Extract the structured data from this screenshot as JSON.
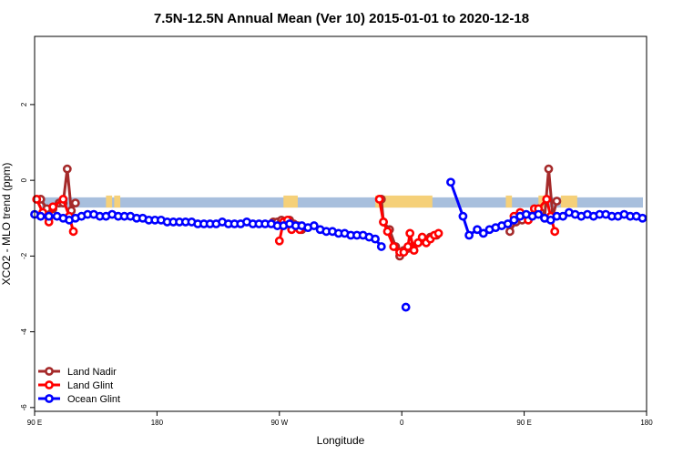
{
  "chart_data": {
    "type": "line",
    "title": "7.5N-12.5N Annual Mean (Ver 10)   2015-01-01 to 2020-12-18",
    "xlabel": "Longitude",
    "ylabel": "XCO2 - MLO trend (ppm)",
    "xlim": [
      -30,
      270
    ],
    "ylim": [
      -6.1,
      3.8
    ],
    "x_ticks": [
      {
        "value": -30,
        "label": "90 E"
      },
      {
        "value": 30,
        "label": "180"
      },
      {
        "value": 90,
        "label": "90 W"
      },
      {
        "value": 150,
        "label": "0"
      },
      {
        "value": 210,
        "label": "90 E"
      },
      {
        "value": 270,
        "label": "180"
      }
    ],
    "y_ticks": [
      {
        "value": 2,
        "label": "2"
      },
      {
        "value": 0,
        "label": "0"
      },
      {
        "value": -2,
        "label": "-2"
      },
      {
        "value": -4,
        "label": "-4"
      },
      {
        "value": -6,
        "label": "-6"
      }
    ],
    "legend_position": "bottom-left",
    "land_band": {
      "y_top": -0.45,
      "y_bottom": -0.72,
      "color": "#a8bfdd",
      "land_color": "#f5d079",
      "land_segments": [
        [
          5,
          8
        ],
        [
          9,
          12
        ],
        [
          92,
          99
        ],
        [
          137,
          165
        ],
        [
          201,
          204
        ],
        [
          217,
          221
        ],
        [
          228,
          236
        ]
      ]
    },
    "series": [
      {
        "name": "Land Nadir",
        "color": "#a52a2a",
        "segments": [
          [
            [
              -27,
              -0.5
            ],
            [
              -24,
              -0.75
            ],
            [
              -23,
              -1.0
            ],
            [
              -21,
              -0.75
            ],
            [
              -18,
              -0.6
            ],
            [
              -16,
              -0.6
            ],
            [
              -14,
              0.3
            ],
            [
              -12,
              -0.8
            ],
            [
              -10,
              -0.6
            ]
          ],
          [
            [
              87,
              -1.1
            ],
            [
              89,
              -1.1
            ],
            [
              91,
              -1.05
            ],
            [
              93,
              -1.1
            ],
            [
              95,
              -1.05
            ],
            [
              97,
              -1.15
            ],
            [
              99,
              -1.2
            ],
            [
              101,
              -1.3
            ]
          ],
          [
            [
              140,
              -0.5
            ],
            [
              141,
              -1.1
            ],
            [
              144,
              -1.3
            ],
            [
              147,
              -1.75
            ],
            [
              149,
              -2.0
            ],
            [
              151,
              -1.85
            ],
            [
              153,
              -1.8
            ],
            [
              155,
              -1.75
            ],
            [
              158,
              -1.65
            ],
            [
              161,
              -1.6
            ],
            [
              164,
              -1.5
            ],
            [
              167,
              -1.45
            ]
          ],
          [
            [
              203,
              -1.35
            ],
            [
              206,
              -1.1
            ],
            [
              209,
              -1.05
            ],
            [
              213,
              -0.95
            ],
            [
              216,
              -0.85
            ],
            [
              218,
              -0.85
            ],
            [
              220,
              -1.0
            ],
            [
              222,
              0.3
            ],
            [
              224,
              -0.95
            ],
            [
              226,
              -0.55
            ]
          ]
        ]
      },
      {
        "name": "Land Glint",
        "color": "#ff0000",
        "segments": [
          [
            [
              -29,
              -0.5
            ],
            [
              -26,
              -0.85
            ],
            [
              -23,
              -1.1
            ],
            [
              -21,
              -0.7
            ],
            [
              -16,
              -0.5
            ],
            [
              -13,
              -0.95
            ],
            [
              -11,
              -1.35
            ]
          ],
          [
            [
              90,
              -1.6
            ],
            [
              92,
              -1.1
            ],
            [
              94,
              -1.05
            ],
            [
              96,
              -1.3
            ],
            [
              98,
              -1.2
            ],
            [
              100,
              -1.3
            ]
          ],
          [
            [
              139,
              -0.5
            ],
            [
              141,
              -1.1
            ],
            [
              143,
              -1.35
            ],
            [
              146,
              -1.75
            ],
            [
              149,
              -1.9
            ],
            [
              151,
              -1.9
            ],
            [
              153,
              -1.75
            ],
            [
              154,
              -1.4
            ],
            [
              156,
              -1.85
            ],
            [
              158,
              -1.65
            ],
            [
              160,
              -1.5
            ],
            [
              162,
              -1.65
            ],
            [
              164,
              -1.55
            ],
            [
              166,
              -1.45
            ],
            [
              168,
              -1.4
            ]
          ],
          [
            [
              205,
              -0.95
            ],
            [
              208,
              -0.85
            ],
            [
              212,
              -1.05
            ],
            [
              215,
              -0.75
            ],
            [
              217,
              -0.75
            ],
            [
              221,
              -0.5
            ],
            [
              223,
              -0.95
            ],
            [
              225,
              -1.35
            ]
          ]
        ]
      },
      {
        "name": "Ocean Glint",
        "color": "#0000ff",
        "segments": [
          [
            [
              -30,
              -0.9
            ],
            [
              -27,
              -0.95
            ],
            [
              -23,
              -0.95
            ],
            [
              -19,
              -0.95
            ],
            [
              -16,
              -1.0
            ],
            [
              -13,
              -1.05
            ],
            [
              -10,
              -1.0
            ],
            [
              -7,
              -0.95
            ],
            [
              -4,
              -0.9
            ],
            [
              -1,
              -0.9
            ],
            [
              2,
              -0.95
            ],
            [
              5,
              -0.95
            ],
            [
              8,
              -0.9
            ],
            [
              11,
              -0.95
            ],
            [
              14,
              -0.95
            ],
            [
              17,
              -0.95
            ],
            [
              20,
              -1.0
            ],
            [
              23,
              -1.0
            ],
            [
              26,
              -1.05
            ],
            [
              29,
              -1.05
            ],
            [
              32,
              -1.05
            ],
            [
              35,
              -1.1
            ],
            [
              38,
              -1.1
            ],
            [
              41,
              -1.1
            ],
            [
              44,
              -1.1
            ],
            [
              47,
              -1.1
            ],
            [
              50,
              -1.15
            ],
            [
              53,
              -1.15
            ],
            [
              56,
              -1.15
            ],
            [
              59,
              -1.15
            ],
            [
              62,
              -1.1
            ],
            [
              65,
              -1.15
            ],
            [
              68,
              -1.15
            ],
            [
              71,
              -1.15
            ],
            [
              74,
              -1.1
            ],
            [
              77,
              -1.15
            ],
            [
              80,
              -1.15
            ],
            [
              83,
              -1.15
            ],
            [
              86,
              -1.15
            ],
            [
              89,
              -1.2
            ],
            [
              92,
              -1.2
            ],
            [
              95,
              -1.15
            ],
            [
              98,
              -1.2
            ],
            [
              101,
              -1.2
            ],
            [
              104,
              -1.25
            ],
            [
              107,
              -1.2
            ],
            [
              110,
              -1.3
            ],
            [
              113,
              -1.35
            ],
            [
              116,
              -1.35
            ],
            [
              119,
              -1.4
            ],
            [
              122,
              -1.4
            ],
            [
              125,
              -1.45
            ],
            [
              128,
              -1.45
            ],
            [
              131,
              -1.45
            ],
            [
              134,
              -1.5
            ],
            [
              137,
              -1.55
            ],
            [
              140,
              -1.75
            ]
          ],
          [
            [
              152,
              -3.35
            ]
          ],
          [
            [
              174,
              -0.05
            ],
            [
              180,
              -0.95
            ],
            [
              183,
              -1.45
            ],
            [
              187,
              -1.3
            ],
            [
              190,
              -1.4
            ],
            [
              193,
              -1.3
            ],
            [
              196,
              -1.25
            ],
            [
              199,
              -1.2
            ],
            [
              202,
              -1.15
            ],
            [
              205,
              -1.05
            ],
            [
              208,
              -0.95
            ],
            [
              211,
              -0.9
            ],
            [
              214,
              -0.95
            ],
            [
              217,
              -0.9
            ],
            [
              220,
              -1.0
            ],
            [
              223,
              -1.05
            ],
            [
              226,
              -0.95
            ],
            [
              229,
              -0.95
            ],
            [
              232,
              -0.85
            ],
            [
              235,
              -0.9
            ],
            [
              238,
              -0.95
            ],
            [
              241,
              -0.9
            ],
            [
              244,
              -0.95
            ],
            [
              247,
              -0.9
            ],
            [
              250,
              -0.9
            ],
            [
              253,
              -0.95
            ],
            [
              256,
              -0.95
            ],
            [
              259,
              -0.9
            ],
            [
              262,
              -0.95
            ],
            [
              265,
              -0.95
            ],
            [
              268,
              -1.0
            ]
          ]
        ]
      }
    ]
  }
}
